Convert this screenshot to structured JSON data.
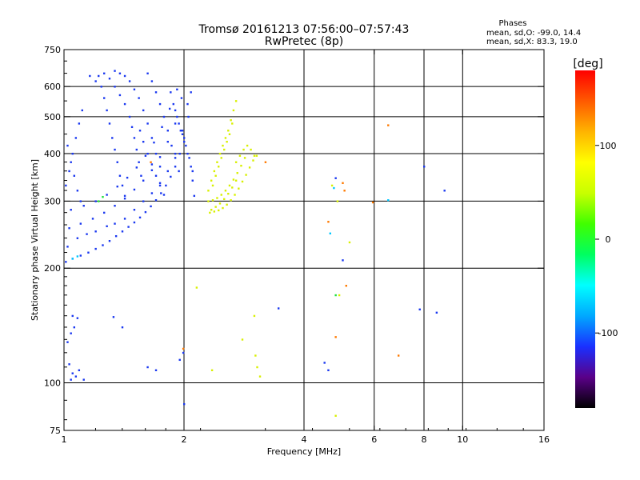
{
  "chart_data": {
    "type": "scatter",
    "title": "Tromsø 20161213 07:56:00–07:57:43",
    "subtitle": "RwPretec (8p)",
    "legend_text": {
      "heading": "Phases",
      "line1": "mean, sd,O: -99.0, 14.4",
      "line2": "mean, sd,X: 83.3, 19.0"
    },
    "xlabel": "Frequency [MHz]",
    "ylabel": "Stationary phase Virtual Height [km]",
    "x_scale": "log",
    "y_scale": "log",
    "xlim": [
      1,
      16
    ],
    "ylim": [
      75,
      750
    ],
    "x_ticks": [
      1,
      2,
      4,
      6,
      8,
      10,
      16
    ],
    "x_tick_labels": [
      "1",
      "2",
      "4",
      "6",
      "8",
      "10",
      "16"
    ],
    "x_grid": [
      2,
      4,
      6,
      8,
      10
    ],
    "y_ticks": [
      75,
      100,
      200,
      300,
      400,
      500,
      600,
      750
    ],
    "y_tick_labels": [
      "75",
      "100",
      "200",
      "300",
      "400",
      "500",
      "600",
      "750"
    ],
    "y_grid": [
      100,
      200,
      300,
      400,
      500,
      600
    ],
    "grid": true,
    "colorbar": {
      "label": "[deg]",
      "range": [
        -180,
        180
      ],
      "ticks": [
        -100,
        0,
        100
      ],
      "tick_labels": [
        "-100",
        "0",
        "100"
      ],
      "colors": [
        "#000000",
        "#5a0088",
        "#1a30ff",
        "#00a8ff",
        "#00ffff",
        "#00ff60",
        "#40ff00",
        "#c8ff00",
        "#ffff00",
        "#ffb400",
        "#ff5a00",
        "#ff0000"
      ]
    },
    "point_groups": [
      {
        "name": "O-trace",
        "phase_deg": -99,
        "color": "#1a38f0",
        "points": [
          [
            1.01,
            208
          ],
          [
            1.05,
            212
          ],
          [
            1.1,
            216
          ],
          [
            1.15,
            220
          ],
          [
            1.2,
            225
          ],
          [
            1.25,
            230
          ],
          [
            1.3,
            236
          ],
          [
            1.35,
            243
          ],
          [
            1.4,
            250
          ],
          [
            1.45,
            257
          ],
          [
            1.5,
            264
          ],
          [
            1.55,
            272
          ],
          [
            1.6,
            281
          ],
          [
            1.65,
            291
          ],
          [
            1.7,
            302
          ],
          [
            1.75,
            315
          ],
          [
            1.8,
            330
          ],
          [
            1.85,
            348
          ],
          [
            1.9,
            370
          ],
          [
            1.95,
            400
          ],
          [
            2.0,
            440
          ],
          [
            2.05,
            500
          ],
          [
            2.08,
            580
          ],
          [
            1.02,
            228
          ],
          [
            1.08,
            240
          ],
          [
            1.14,
            246
          ],
          [
            1.2,
            250
          ],
          [
            1.28,
            258
          ],
          [
            1.34,
            262
          ],
          [
            1.42,
            270
          ],
          [
            1.5,
            285
          ],
          [
            1.58,
            300
          ],
          [
            1.66,
            315
          ],
          [
            1.74,
            335
          ],
          [
            1.82,
            360
          ],
          [
            1.9,
            400
          ],
          [
            1.98,
            460
          ],
          [
            2.04,
            540
          ],
          [
            1.03,
            255
          ],
          [
            1.1,
            262
          ],
          [
            1.18,
            270
          ],
          [
            1.26,
            280
          ],
          [
            1.34,
            292
          ],
          [
            1.42,
            305
          ],
          [
            1.5,
            322
          ],
          [
            1.58,
            340
          ],
          [
            1.66,
            362
          ],
          [
            1.74,
            392
          ],
          [
            1.82,
            430
          ],
          [
            1.9,
            480
          ],
          [
            1.97,
            560
          ],
          [
            1.04,
            285
          ],
          [
            1.12,
            292
          ],
          [
            1.2,
            300
          ],
          [
            1.28,
            312
          ],
          [
            1.36,
            328
          ],
          [
            1.44,
            346
          ],
          [
            1.52,
            368
          ],
          [
            1.6,
            395
          ],
          [
            1.68,
            428
          ],
          [
            1.76,
            470
          ],
          [
            1.84,
            525
          ],
          [
            1.92,
            590
          ],
          [
            1.01,
            330
          ],
          [
            1.03,
            360
          ],
          [
            1.05,
            400
          ],
          [
            1.07,
            440
          ],
          [
            1.09,
            480
          ],
          [
            1.11,
            520
          ],
          [
            1.02,
            420
          ],
          [
            1.04,
            380
          ],
          [
            1.06,
            350
          ],
          [
            1.08,
            320
          ],
          [
            1.1,
            300
          ],
          [
            1.16,
            640
          ],
          [
            1.2,
            620
          ],
          [
            1.24,
            600
          ],
          [
            1.26,
            560
          ],
          [
            1.28,
            520
          ],
          [
            1.3,
            480
          ],
          [
            1.32,
            440
          ],
          [
            1.34,
            410
          ],
          [
            1.36,
            380
          ],
          [
            1.38,
            350
          ],
          [
            1.4,
            330
          ],
          [
            1.42,
            310
          ],
          [
            1.22,
            640
          ],
          [
            1.26,
            650
          ],
          [
            1.3,
            630
          ],
          [
            1.34,
            600
          ],
          [
            1.38,
            570
          ],
          [
            1.42,
            540
          ],
          [
            1.46,
            500
          ],
          [
            1.48,
            470
          ],
          [
            1.5,
            440
          ],
          [
            1.52,
            410
          ],
          [
            1.54,
            380
          ],
          [
            1.56,
            350
          ],
          [
            1.34,
            660
          ],
          [
            1.38,
            650
          ],
          [
            1.42,
            640
          ],
          [
            1.46,
            620
          ],
          [
            1.5,
            590
          ],
          [
            1.54,
            560
          ],
          [
            1.58,
            520
          ],
          [
            1.62,
            480
          ],
          [
            1.66,
            440
          ],
          [
            1.7,
            400
          ],
          [
            1.74,
            370
          ],
          [
            1.62,
            650
          ],
          [
            1.66,
            620
          ],
          [
            1.7,
            580
          ],
          [
            1.74,
            540
          ],
          [
            1.78,
            500
          ],
          [
            1.82,
            460
          ],
          [
            1.86,
            420
          ],
          [
            1.9,
            390
          ],
          [
            1.94,
            360
          ],
          [
            1.85,
            580
          ],
          [
            1.88,
            540
          ],
          [
            1.92,
            500
          ],
          [
            1.96,
            460
          ],
          [
            2.0,
            430
          ],
          [
            2.04,
            400
          ],
          [
            2.08,
            370
          ],
          [
            2.1,
            340
          ],
          [
            2.12,
            310
          ],
          [
            1.9,
            520
          ],
          [
            1.94,
            480
          ],
          [
            1.98,
            450
          ],
          [
            2.02,
            420
          ],
          [
            2.06,
            390
          ],
          [
            2.1,
            360
          ],
          [
            1.55,
            460
          ],
          [
            1.58,
            430
          ],
          [
            1.62,
            400
          ],
          [
            1.66,
            375
          ],
          [
            1.7,
            350
          ],
          [
            1.74,
            330
          ],
          [
            1.78,
            312
          ],
          [
            1.05,
            150
          ],
          [
            1.08,
            148
          ],
          [
            1.06,
            140
          ],
          [
            1.04,
            135
          ],
          [
            1.02,
            128
          ],
          [
            1.03,
            112
          ],
          [
            1.05,
            106
          ],
          [
            1.07,
            104
          ],
          [
            1.09,
            108
          ],
          [
            1.12,
            102
          ],
          [
            1.04,
            102
          ],
          [
            1.33,
            149
          ],
          [
            1.4,
            140
          ],
          [
            1.62,
            110
          ],
          [
            1.7,
            108
          ],
          [
            1.95,
            115
          ],
          [
            1.99,
            120
          ],
          [
            2.0,
            88
          ],
          [
            3.45,
            157
          ],
          [
            4.5,
            113
          ],
          [
            4.6,
            108
          ],
          [
            4.8,
            345
          ],
          [
            5.0,
            210
          ],
          [
            7.8,
            156
          ],
          [
            8.0,
            370
          ],
          [
            8.6,
            153
          ],
          [
            9.0,
            320
          ]
        ]
      },
      {
        "name": "X-trace",
        "phase_deg": 83,
        "color": "#d8f000",
        "points": [
          [
            2.32,
            280
          ],
          [
            2.38,
            282
          ],
          [
            2.44,
            284
          ],
          [
            2.5,
            288
          ],
          [
            2.56,
            294
          ],
          [
            2.62,
            302
          ],
          [
            2.68,
            312
          ],
          [
            2.74,
            324
          ],
          [
            2.8,
            338
          ],
          [
            2.86,
            352
          ],
          [
            2.92,
            368
          ],
          [
            2.98,
            384
          ],
          [
            3.04,
            395
          ],
          [
            2.3,
            300
          ],
          [
            2.36,
            302
          ],
          [
            2.42,
            306
          ],
          [
            2.48,
            312
          ],
          [
            2.54,
            320
          ],
          [
            2.6,
            330
          ],
          [
            2.66,
            342
          ],
          [
            2.72,
            356
          ],
          [
            2.78,
            372
          ],
          [
            2.84,
            390
          ],
          [
            2.3,
            320
          ],
          [
            2.34,
            340
          ],
          [
            2.38,
            360
          ],
          [
            2.42,
            380
          ],
          [
            2.46,
            400
          ],
          [
            2.5,
            420
          ],
          [
            2.54,
            440
          ],
          [
            2.58,
            460
          ],
          [
            2.62,
            490
          ],
          [
            2.66,
            520
          ],
          [
            2.7,
            550
          ],
          [
            2.36,
            330
          ],
          [
            2.4,
            350
          ],
          [
            2.44,
            370
          ],
          [
            2.48,
            390
          ],
          [
            2.52,
            410
          ],
          [
            2.56,
            430
          ],
          [
            2.6,
            450
          ],
          [
            2.64,
            480
          ],
          [
            2.7,
            380
          ],
          [
            2.76,
            395
          ],
          [
            2.82,
            410
          ],
          [
            2.88,
            420
          ],
          [
            2.94,
            410
          ],
          [
            3.0,
            395
          ],
          [
            2.34,
            285
          ],
          [
            2.4,
            290
          ],
          [
            2.46,
            296
          ],
          [
            2.52,
            304
          ],
          [
            2.58,
            314
          ],
          [
            2.64,
            326
          ],
          [
            2.7,
            340
          ],
          [
            3.0,
            150
          ],
          [
            3.02,
            118
          ],
          [
            3.05,
            110
          ],
          [
            3.1,
            104
          ],
          [
            2.8,
            130
          ],
          [
            2.35,
            108
          ],
          [
            2.15,
            178
          ],
          [
            4.8,
            82
          ],
          [
            4.85,
            300
          ],
          [
            4.9,
            170
          ],
          [
            5.2,
            234
          ],
          [
            4.7,
            330
          ]
        ]
      },
      {
        "name": "other-orange",
        "phase_deg": 140,
        "color": "#ff7a00",
        "points": [
          [
            4.6,
            265
          ],
          [
            4.8,
            132
          ],
          [
            5.0,
            335
          ],
          [
            5.05,
            320
          ],
          [
            5.1,
            180
          ],
          [
            5.95,
            298
          ],
          [
            6.5,
            475
          ],
          [
            6.9,
            118
          ],
          [
            3.2,
            380
          ],
          [
            1.65,
            380
          ],
          [
            1.99,
            123
          ]
        ]
      },
      {
        "name": "other-cyan",
        "phase_deg": -40,
        "color": "#00c8ff",
        "points": [
          [
            4.75,
            325
          ],
          [
            4.65,
            247
          ],
          [
            6.5,
            302
          ],
          [
            1.05,
            212
          ],
          [
            1.08,
            215
          ]
        ]
      },
      {
        "name": "other-green",
        "phase_deg": 20,
        "color": "#20e040",
        "points": [
          [
            4.8,
            170
          ],
          [
            1.25,
            308
          ],
          [
            1.22,
            300
          ]
        ]
      }
    ]
  }
}
